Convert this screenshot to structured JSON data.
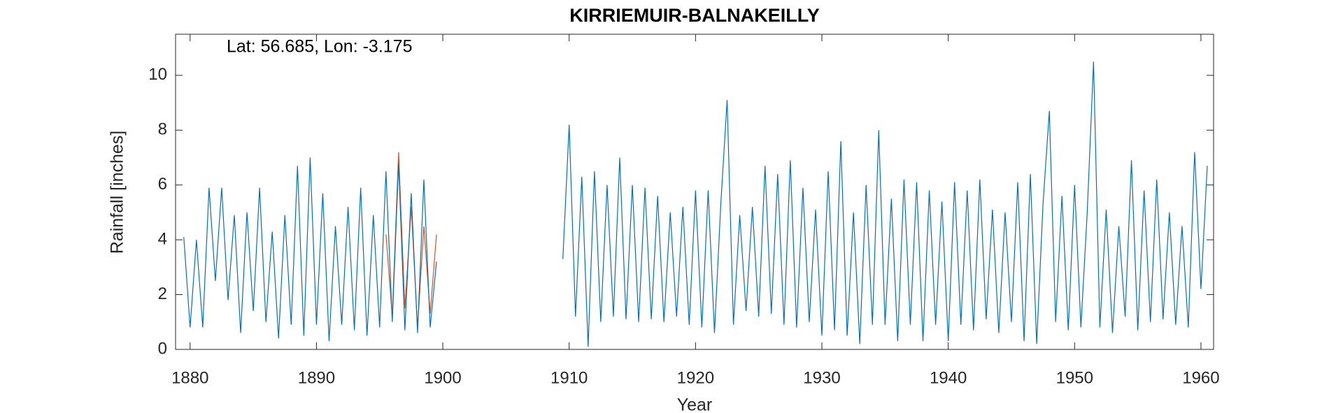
{
  "chart_data": {
    "type": "line",
    "title": "KIRRIEMUIR-BALNAKEILLY",
    "annotation": "Lat: 56.685, Lon: -3.175",
    "x_label": "Year",
    "y_label": "Rainfall [inches]",
    "xlim": [
      1878.85,
      1961
    ],
    "ylim": [
      0,
      11.5
    ],
    "xticks": [
      1880,
      1890,
      1900,
      1910,
      1920,
      1930,
      1940,
      1950,
      1960
    ],
    "yticks": [
      0,
      2,
      4,
      6,
      8,
      10
    ],
    "series": [
      {
        "color": "#d95319",
        "x": [
          1895.5,
          1896,
          1896.5,
          1897,
          1897.5,
          1898,
          1898.5,
          1899,
          1899.5
        ],
        "values": [
          4.2,
          1.2,
          7.2,
          1.5,
          5.2,
          0.8,
          4.5,
          1.3,
          4.2
        ]
      },
      {
        "color": "#0072bd",
        "x": [
          1879.5,
          1880,
          1880.5,
          1881,
          1881.5,
          1882,
          1882.5,
          1883,
          1883.5,
          1884,
          1884.5,
          1885,
          1885.5,
          1886,
          1886.5,
          1887,
          1887.5,
          1888,
          1888.5,
          1889,
          1889.5,
          1890,
          1890.5,
          1891,
          1891.5,
          1892,
          1892.5,
          1893,
          1893.5,
          1894,
          1894.5,
          1895,
          1895.5,
          1896,
          1896.5,
          1897,
          1897.5,
          1898,
          1898.5,
          1899,
          1899.5,
          1904.5,
          1909.5,
          1910,
          1910.5,
          1911,
          1911.5,
          1912,
          1912.5,
          1913,
          1913.5,
          1914,
          1914.5,
          1915,
          1915.5,
          1916,
          1916.5,
          1917,
          1917.5,
          1918,
          1918.5,
          1919,
          1919.5,
          1920,
          1920.5,
          1921,
          1921.5,
          1922,
          1922.5,
          1923,
          1923.5,
          1924,
          1924.5,
          1925,
          1925.5,
          1926,
          1926.5,
          1927,
          1927.5,
          1928,
          1928.5,
          1929,
          1929.5,
          1930,
          1930.5,
          1931,
          1931.5,
          1932,
          1932.5,
          1933,
          1933.5,
          1934,
          1934.5,
          1935,
          1935.5,
          1936,
          1936.5,
          1937,
          1937.5,
          1938,
          1938.5,
          1939,
          1939.5,
          1940,
          1940.5,
          1941,
          1941.5,
          1942,
          1942.5,
          1943,
          1943.5,
          1944,
          1944.5,
          1945,
          1945.5,
          1946,
          1946.5,
          1947,
          1947.5,
          1948,
          1948.5,
          1949,
          1949.5,
          1950,
          1950.5,
          1951,
          1951.5,
          1952,
          1952.5,
          1953,
          1953.5,
          1954,
          1954.5,
          1955,
          1955.5,
          1956,
          1956.5,
          1957,
          1957.5,
          1958,
          1958.5,
          1959,
          1959.5,
          1960,
          1960.5
        ],
        "values": [
          4.1,
          0.8,
          4.0,
          0.8,
          5.9,
          2.5,
          5.9,
          1.8,
          4.9,
          0.6,
          5.0,
          1.4,
          5.9,
          1.0,
          4.3,
          0.4,
          4.9,
          0.9,
          6.7,
          0.5,
          7.0,
          0.9,
          5.7,
          0.3,
          4.5,
          0.9,
          5.2,
          0.7,
          5.9,
          0.5,
          4.9,
          0.8,
          6.5,
          1.0,
          6.8,
          0.7,
          5.7,
          0.6,
          6.2,
          0.8,
          3.2,
          null,
          3.3,
          8.2,
          1.2,
          6.3,
          0.1,
          6.5,
          1.0,
          6.0,
          1.2,
          7.0,
          1.1,
          6.0,
          1.0,
          5.9,
          1.1,
          5.6,
          1.0,
          5.0,
          1.2,
          5.2,
          0.9,
          5.8,
          0.8,
          5.8,
          0.6,
          5.3,
          9.1,
          0.9,
          4.9,
          1.4,
          5.2,
          1.2,
          6.7,
          1.3,
          6.4,
          0.9,
          6.9,
          0.8,
          5.9,
          1.0,
          5.1,
          0.5,
          6.5,
          0.7,
          7.6,
          0.5,
          5.0,
          0.2,
          6.0,
          0.9,
          8.0,
          0.9,
          5.5,
          0.3,
          6.2,
          0.9,
          6.1,
          0.3,
          5.8,
          0.9,
          5.4,
          0.3,
          6.1,
          0.9,
          5.8,
          0.7,
          6.2,
          1.1,
          5.1,
          0.6,
          5.0,
          1.0,
          6.1,
          0.3,
          6.4,
          0.2,
          5.3,
          8.7,
          1.0,
          5.6,
          0.7,
          6.0,
          0.8,
          5.0,
          10.5,
          0.8,
          5.1,
          0.6,
          4.5,
          1.2,
          6.9,
          0.7,
          5.8,
          1.0,
          6.2,
          1.1,
          5.0,
          0.9,
          4.5,
          0.8,
          7.2,
          2.2,
          6.7
        ]
      }
    ]
  }
}
